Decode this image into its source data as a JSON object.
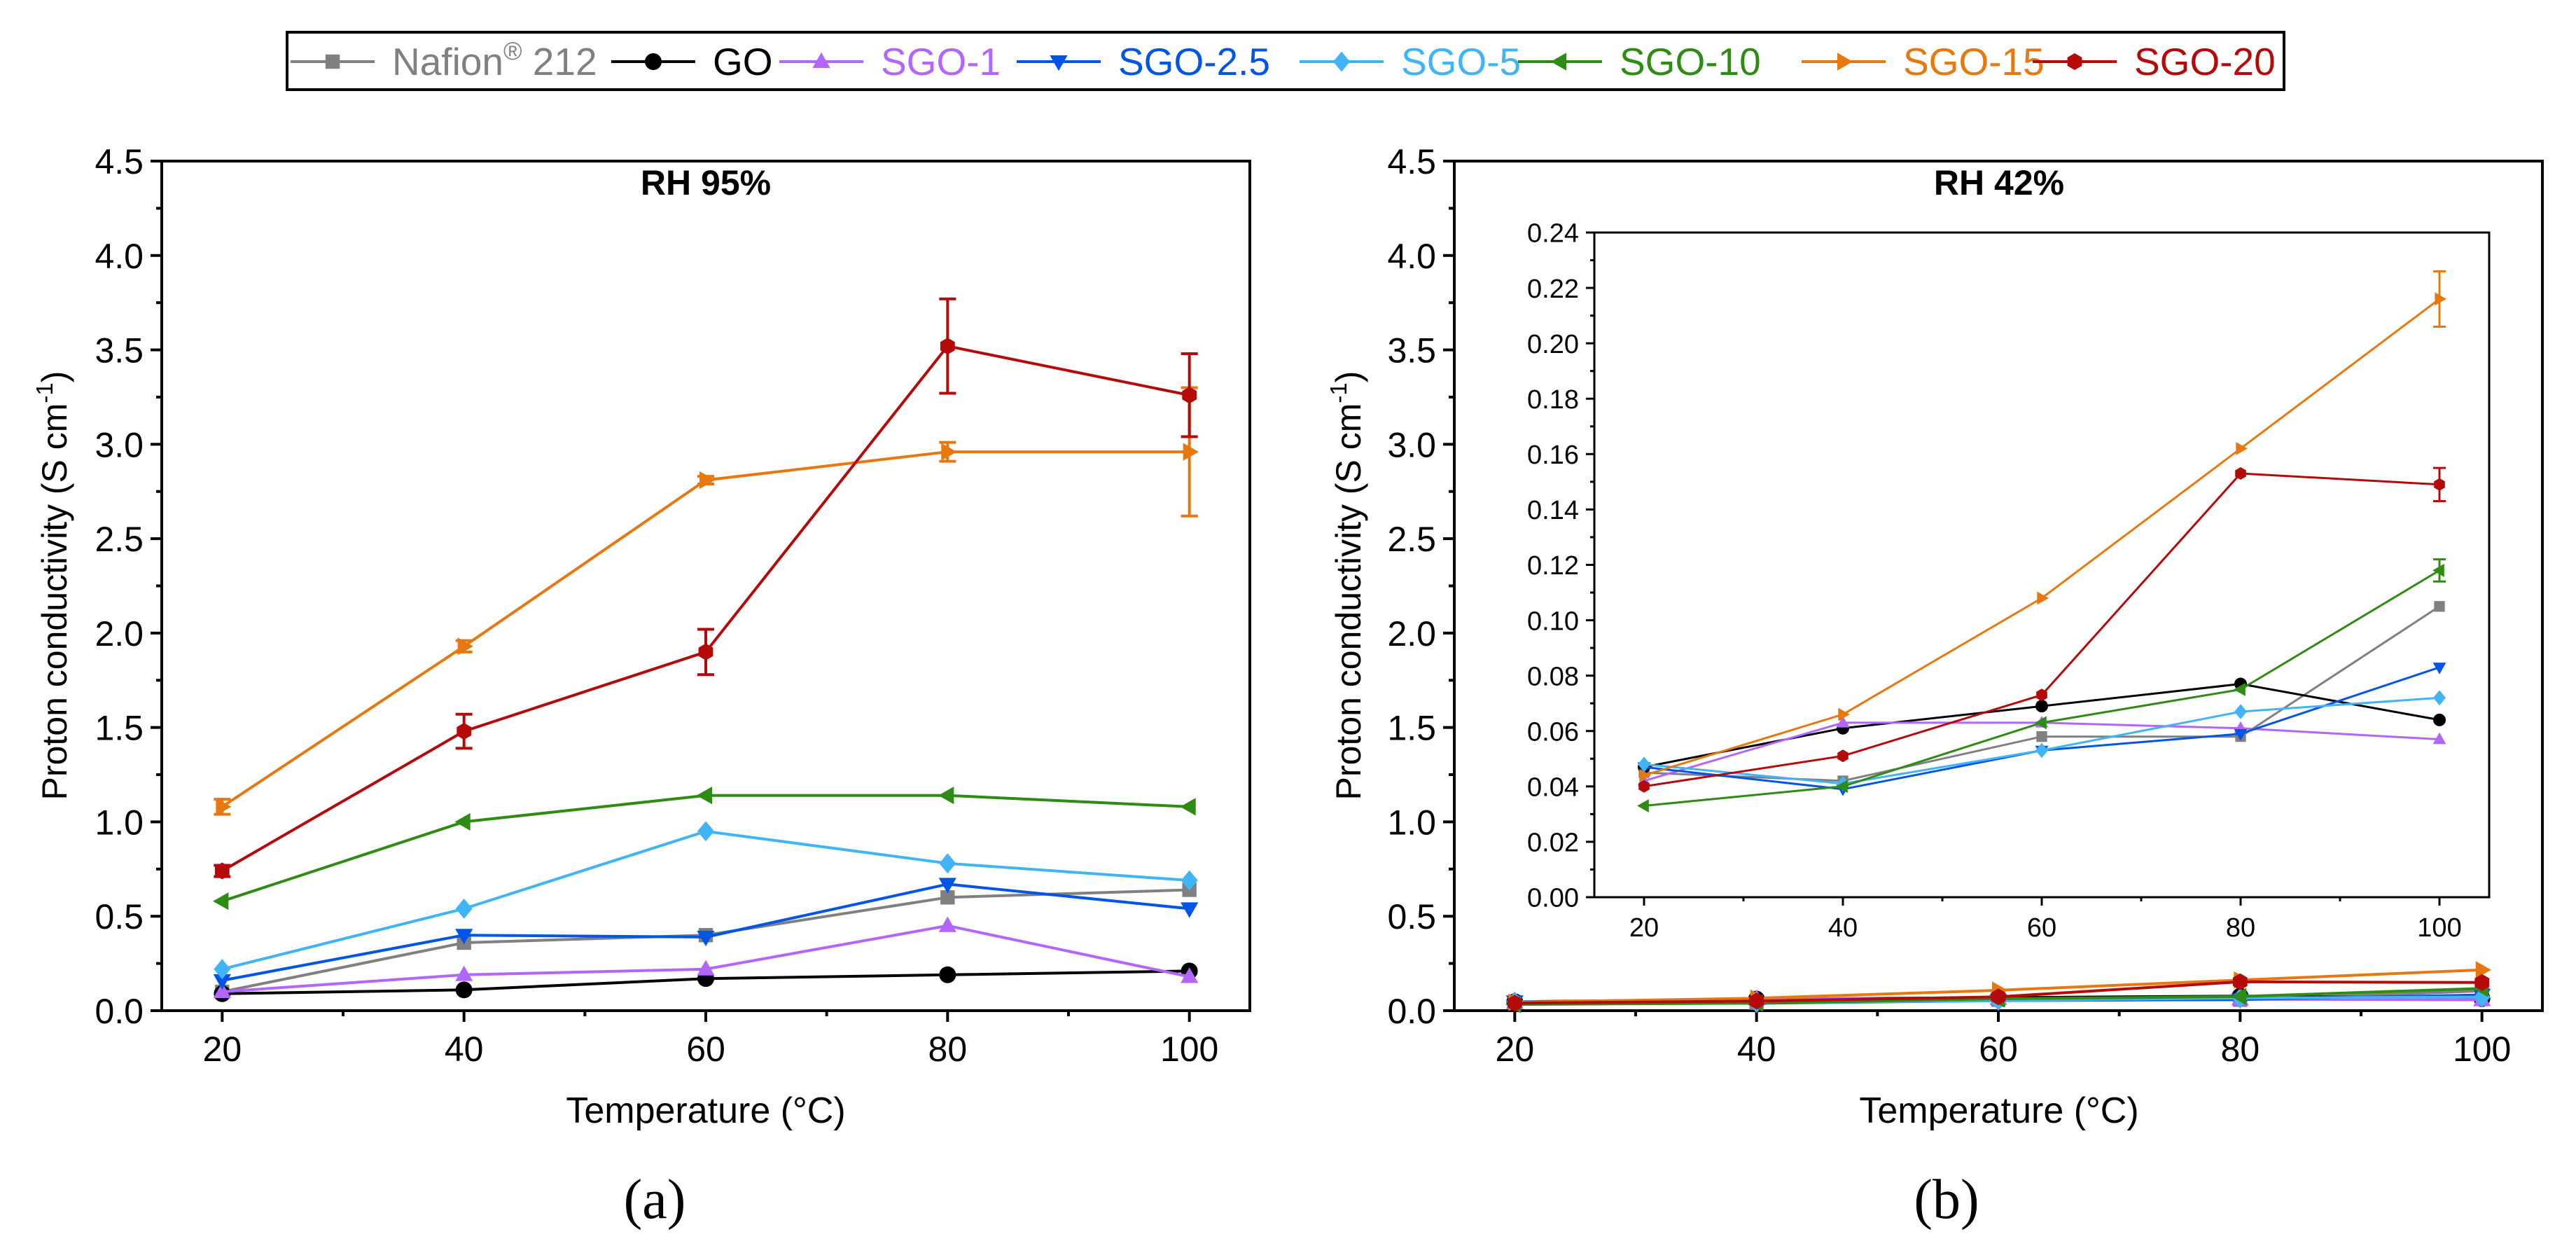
{
  "legend": [
    {
      "name": "Nafion® 212",
      "base": "Nafion",
      "sup": "®",
      "suffix": " 212",
      "color": "#808080",
      "marker": "square"
    },
    {
      "name": "GO",
      "color": "#000000",
      "marker": "circle"
    },
    {
      "name": "SGO-1",
      "color": "#b266ff",
      "marker": "triangle-up"
    },
    {
      "name": "SGO-2.5",
      "color": "#0055e6",
      "marker": "triangle-down"
    },
    {
      "name": "SGO-5",
      "color": "#40b4f5",
      "marker": "diamond"
    },
    {
      "name": "SGO-10",
      "color": "#2e8b14",
      "marker": "triangle-left"
    },
    {
      "name": "SGO-15",
      "color": "#e6780f",
      "marker": "triangle-right"
    },
    {
      "name": "SGO-20",
      "color": "#b40a0a",
      "marker": "hexagon"
    }
  ],
  "captions": {
    "a": "(a)",
    "b": "(b)"
  },
  "chart_data": [
    {
      "type": "line",
      "id": "a",
      "title": "RH 95%",
      "xlabel": "Temperature (°C)",
      "ylabel": "Proton conductivity (S cm⁻¹)",
      "ylabel_main": "Proton conductivity (S cm",
      "ylabel_sup": "-1",
      "ylabel_end": ")",
      "xlim": [
        15,
        105
      ],
      "ylim": [
        0,
        4.5
      ],
      "xticks": [
        20,
        40,
        60,
        80,
        100
      ],
      "yticks": [
        0,
        0.5,
        1.0,
        1.5,
        2.0,
        2.5,
        3.0,
        3.5,
        4.0,
        4.5
      ],
      "xtick_labels": [
        "20",
        "40",
        "60",
        "80",
        "100"
      ],
      "ytick_labels": [
        "0.0",
        "0.5",
        "1.0",
        "1.5",
        "2.0",
        "2.5",
        "3.0",
        "3.5",
        "4.0",
        "4.5"
      ],
      "x": [
        20,
        40,
        60,
        80,
        100
      ],
      "series": [
        {
          "name": "Nafion® 212",
          "values": [
            0.1,
            0.36,
            0.4,
            0.6,
            0.64
          ]
        },
        {
          "name": "GO",
          "values": [
            0.09,
            0.11,
            0.17,
            0.19,
            0.21
          ]
        },
        {
          "name": "SGO-1",
          "values": [
            0.1,
            0.19,
            0.22,
            0.45,
            0.18
          ]
        },
        {
          "name": "SGO-2.5",
          "values": [
            0.16,
            0.4,
            0.39,
            0.67,
            0.54
          ]
        },
        {
          "name": "SGO-5",
          "values": [
            0.22,
            0.54,
            0.95,
            0.78,
            0.69
          ]
        },
        {
          "name": "SGO-10",
          "values": [
            0.58,
            1.0,
            1.14,
            1.14,
            1.08
          ]
        },
        {
          "name": "SGO-15",
          "values": [
            1.08,
            1.93,
            2.81,
            2.96,
            2.96
          ],
          "errors": [
            0.04,
            0.03,
            0.02,
            0.05,
            0.34
          ]
        },
        {
          "name": "SGO-20",
          "values": [
            0.74,
            1.48,
            1.9,
            3.52,
            3.26
          ],
          "errors": [
            0.03,
            0.09,
            0.12,
            0.25,
            0.22
          ]
        }
      ]
    },
    {
      "type": "line",
      "id": "b",
      "title": "RH 42%",
      "xlabel": "Temperature (°C)",
      "ylabel": "Proton conductivity (S cm⁻¹)",
      "ylabel_main": "Proton conductivity (S cm",
      "ylabel_sup": "-1",
      "ylabel_end": ")",
      "xlim": [
        15,
        105
      ],
      "ylim": [
        0,
        4.5
      ],
      "xticks": [
        20,
        40,
        60,
        80,
        100
      ],
      "yticks": [
        0,
        0.5,
        1.0,
        1.5,
        2.0,
        2.5,
        3.0,
        3.5,
        4.0,
        4.5
      ],
      "xtick_labels": [
        "20",
        "40",
        "60",
        "80",
        "100"
      ],
      "ytick_labels": [
        "0.0",
        "0.5",
        "1.0",
        "1.5",
        "2.0",
        "2.5",
        "3.0",
        "3.5",
        "4.0",
        "4.5"
      ],
      "x": [
        20,
        40,
        60,
        80,
        100
      ],
      "series": [
        {
          "name": "Nafion® 212",
          "values": [
            0.045,
            0.042,
            0.058,
            0.058,
            0.105
          ]
        },
        {
          "name": "GO",
          "values": [
            0.047,
            0.061,
            0.069,
            0.077,
            0.064
          ]
        },
        {
          "name": "SGO-1",
          "values": [
            0.042,
            0.063,
            0.063,
            0.061,
            0.057
          ]
        },
        {
          "name": "SGO-2.5",
          "values": [
            0.047,
            0.039,
            0.053,
            0.059,
            0.083
          ]
        },
        {
          "name": "SGO-5",
          "values": [
            0.048,
            0.041,
            0.053,
            0.067,
            0.072
          ]
        },
        {
          "name": "SGO-10",
          "values": [
            0.033,
            0.04,
            0.063,
            0.075,
            0.118
          ]
        },
        {
          "name": "SGO-15",
          "values": [
            0.044,
            0.066,
            0.108,
            0.162,
            0.216
          ]
        },
        {
          "name": "SGO-20",
          "values": [
            0.04,
            0.051,
            0.073,
            0.153,
            0.149
          ]
        }
      ],
      "inset": {
        "xlim": [
          15,
          105
        ],
        "ylim": [
          0,
          0.24
        ],
        "xticks": [
          20,
          40,
          60,
          80,
          100
        ],
        "yticks": [
          0,
          0.02,
          0.04,
          0.06,
          0.08,
          0.1,
          0.12,
          0.14,
          0.16,
          0.18,
          0.2,
          0.22,
          0.24
        ],
        "xtick_labels": [
          "20",
          "40",
          "60",
          "80",
          "100"
        ],
        "ytick_labels": [
          "0.00",
          "0.02",
          "0.04",
          "0.06",
          "0.08",
          "0.10",
          "0.12",
          "0.14",
          "0.16",
          "0.18",
          "0.20",
          "0.22",
          "0.24"
        ],
        "x": [
          20,
          40,
          60,
          80,
          100
        ],
        "series": [
          {
            "name": "Nafion® 212",
            "values": [
              0.045,
              0.042,
              0.058,
              0.058,
              0.105
            ]
          },
          {
            "name": "GO",
            "values": [
              0.047,
              0.061,
              0.069,
              0.077,
              0.064
            ]
          },
          {
            "name": "SGO-1",
            "values": [
              0.042,
              0.063,
              0.063,
              0.061,
              0.057
            ]
          },
          {
            "name": "SGO-2.5",
            "values": [
              0.047,
              0.039,
              0.053,
              0.059,
              0.083
            ]
          },
          {
            "name": "SGO-5",
            "values": [
              0.048,
              0.041,
              0.053,
              0.067,
              0.072
            ]
          },
          {
            "name": "SGO-10",
            "values": [
              0.033,
              0.04,
              0.063,
              0.075,
              0.118
            ],
            "errors": [
              0,
              0,
              0,
              0,
              0.004
            ]
          },
          {
            "name": "SGO-15",
            "values": [
              0.044,
              0.066,
              0.108,
              0.162,
              0.216
            ],
            "errors": [
              0,
              0,
              0,
              0,
              0.01
            ]
          },
          {
            "name": "SGO-20",
            "values": [
              0.04,
              0.051,
              0.073,
              0.153,
              0.149
            ],
            "errors": [
              0,
              0,
              0,
              0,
              0.006
            ]
          }
        ]
      }
    }
  ]
}
